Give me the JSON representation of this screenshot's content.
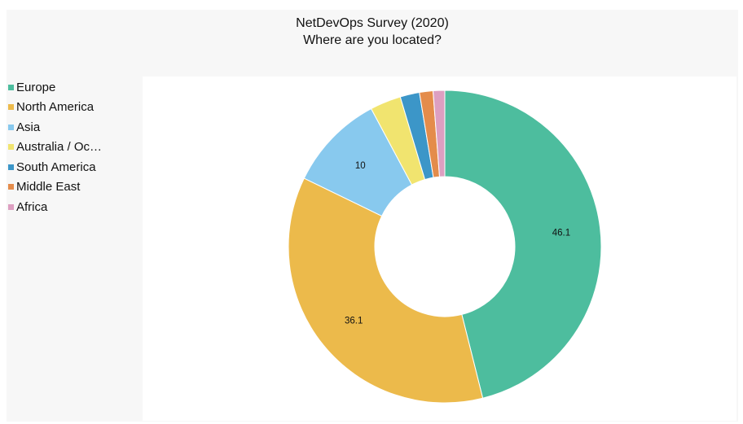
{
  "chart_data": {
    "type": "pie",
    "title": "NetDevOps Survey (2020)",
    "subtitle": "Where are you located?",
    "legend_position": "left",
    "donut": true,
    "categories": [
      "Europe",
      "North America",
      "Asia",
      "Australia / Oc…",
      "South America",
      "Middle East",
      "Africa"
    ],
    "values": [
      46.1,
      36.1,
      10,
      3.2,
      2,
      1.4,
      1.2
    ],
    "data_labels": [
      "46.1",
      "36.1",
      "10",
      "",
      "",
      "",
      ""
    ],
    "colors": [
      "#4dbd9e",
      "#ecba4b",
      "#88c9ee",
      "#f1e46f",
      "#3c96c8",
      "#e48c4b",
      "#dd9fc1"
    ]
  }
}
